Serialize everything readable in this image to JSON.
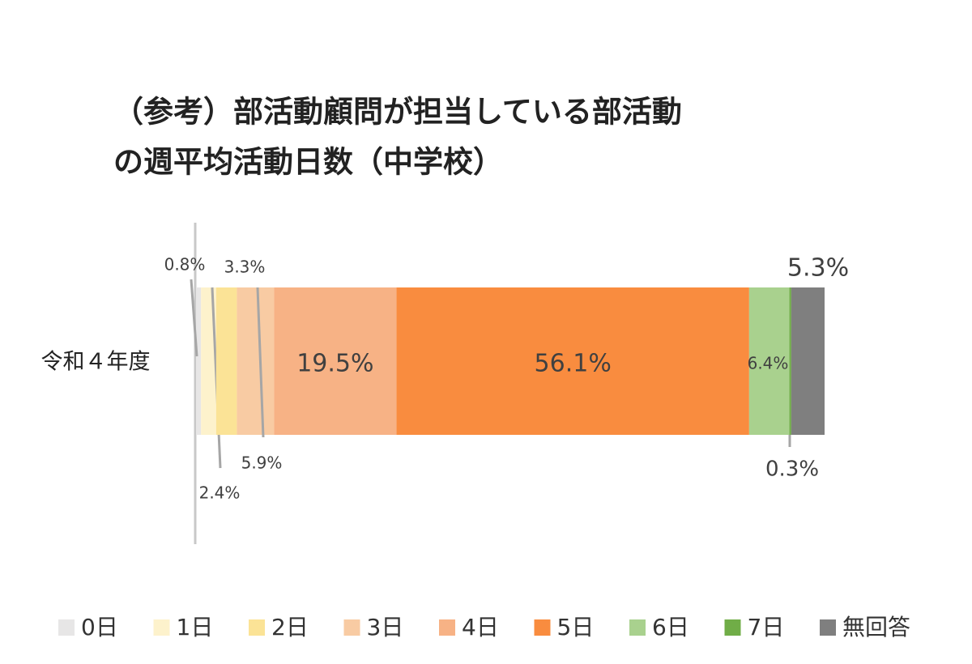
{
  "chart_data": {
    "type": "stacked-bar-horizontal",
    "title": [
      "（参考）部活動顧問が担当している部活動",
      "の週平均活動日数（中学校）"
    ],
    "categories": [
      "令和４年度"
    ],
    "xlim": [
      0,
      100
    ],
    "series": [
      {
        "name": "0日",
        "color": "#e7e6e6",
        "values": [
          0.8
        ],
        "value_labels": [
          "0.8%"
        ]
      },
      {
        "name": "1日",
        "color": "#fdf2cc",
        "values": [
          2.4
        ],
        "value_labels": [
          "2.4%"
        ]
      },
      {
        "name": "2日",
        "color": "#fbe396",
        "values": [
          3.3
        ],
        "value_labels": [
          "3.3%"
        ]
      },
      {
        "name": "3日",
        "color": "#f8cba3",
        "values": [
          5.9
        ],
        "value_labels": [
          "5.9%"
        ]
      },
      {
        "name": "4日",
        "color": "#f7b285",
        "values": [
          19.5
        ],
        "value_labels": [
          "19.5%"
        ]
      },
      {
        "name": "5日",
        "color": "#f98c3f",
        "values": [
          56.1
        ],
        "value_labels": [
          "56.1%"
        ]
      },
      {
        "name": "6日",
        "color": "#a9d18e",
        "values": [
          6.4
        ],
        "value_labels": [
          "6.4%"
        ]
      },
      {
        "name": "7日",
        "color": "#70ad47",
        "values": [
          0.3
        ],
        "value_labels": [
          "0.3%"
        ]
      },
      {
        "name": "無回答",
        "color": "#7f7f7f",
        "values": [
          5.3
        ],
        "value_labels": [
          "5.3%"
        ]
      }
    ]
  }
}
